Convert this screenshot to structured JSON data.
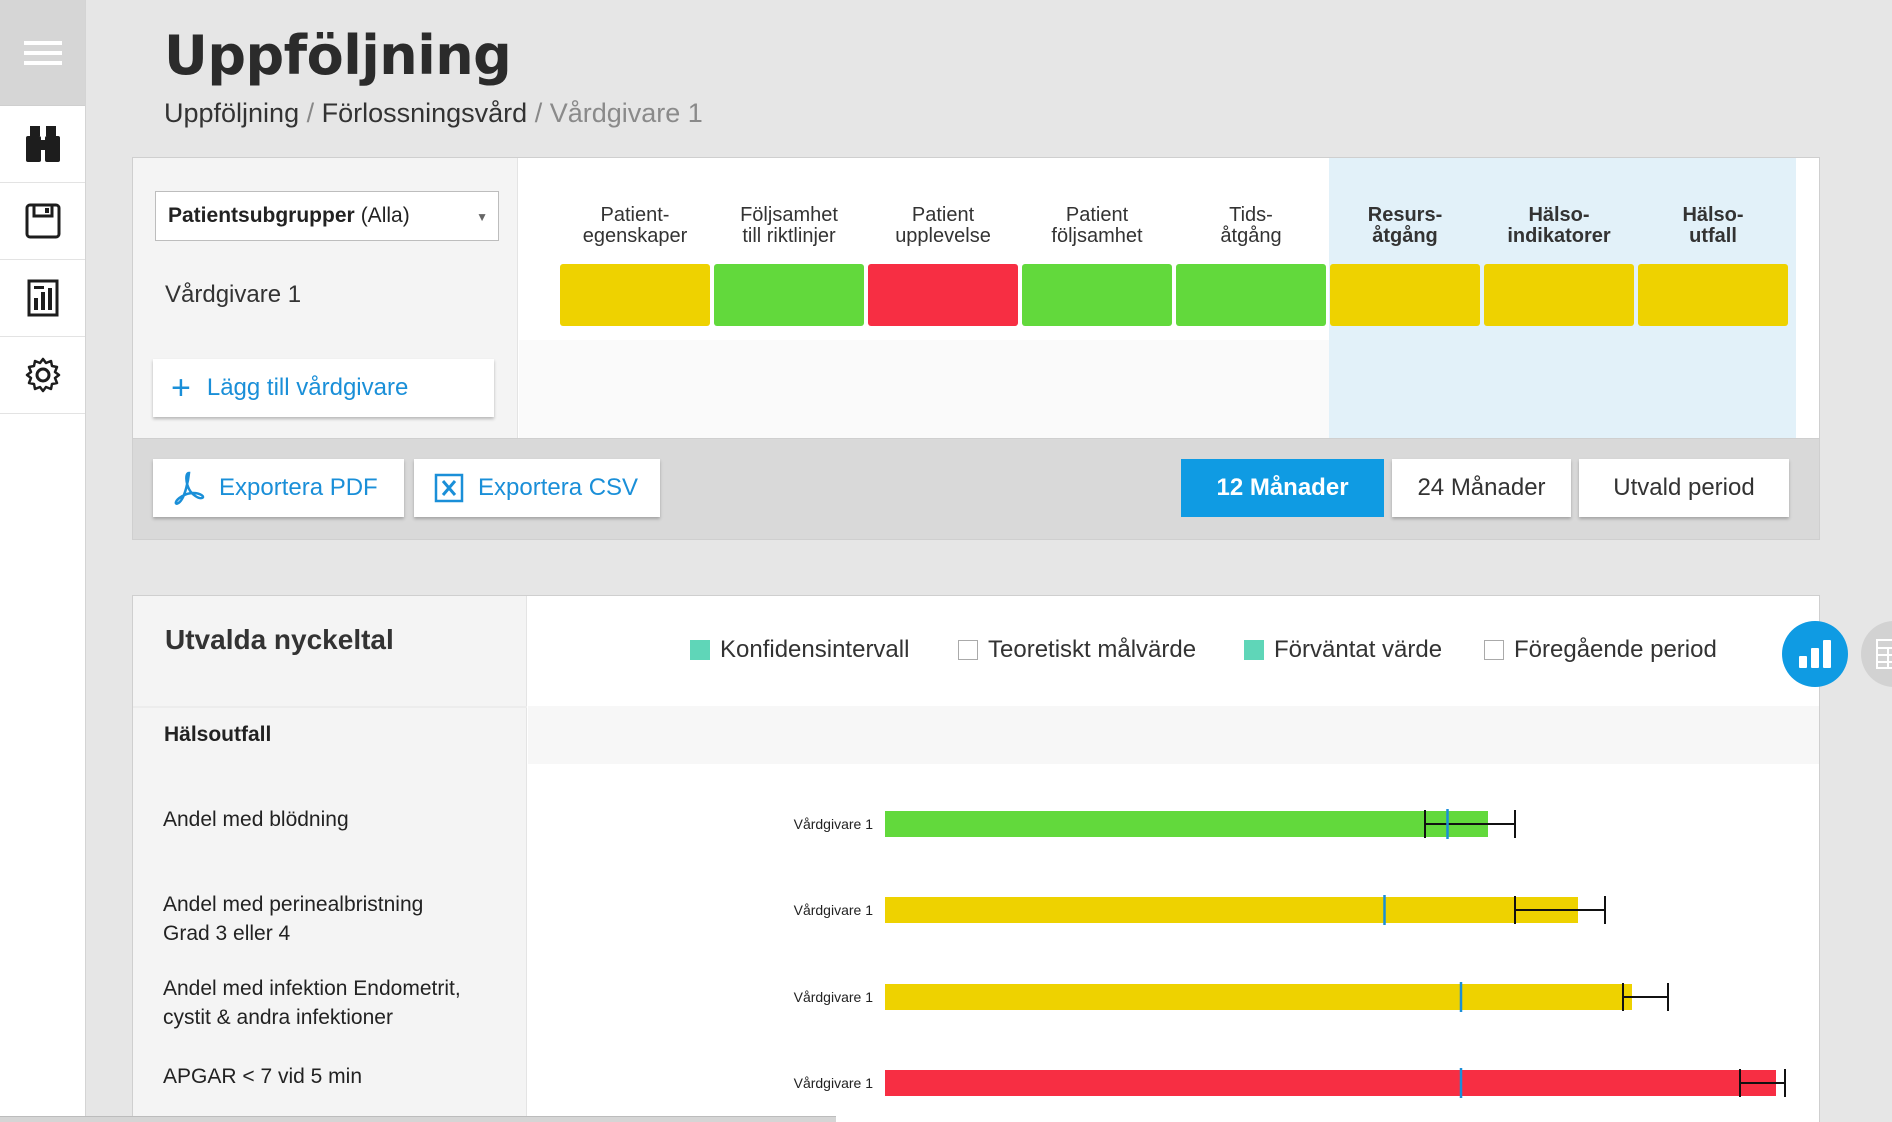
{
  "header": {
    "title": "Uppföljning",
    "breadcrumb": [
      "Uppföljning",
      "Förlossningsvård",
      "Vårdgivare 1"
    ]
  },
  "sidebar": {
    "items": [
      {
        "icon": "menu-icon"
      },
      {
        "icon": "binoculars-icon"
      },
      {
        "icon": "save-icon"
      },
      {
        "icon": "report-icon"
      },
      {
        "icon": "gear-icon"
      }
    ]
  },
  "overview": {
    "subgroup_label": "Patientsubgrupper",
    "subgroup_value": "(Alla)",
    "caregiver": "Vårdgivare 1",
    "add_caregiver": "Lägg till vårdgivare",
    "categories": [
      {
        "line1": "Patient-",
        "line2": "egenskaper",
        "status": "yellow",
        "highlight": false
      },
      {
        "line1": "Följsamhet",
        "line2": "till riktlinjer",
        "status": "green",
        "highlight": false
      },
      {
        "line1": "Patient",
        "line2": "upplevelse",
        "status": "red",
        "highlight": false
      },
      {
        "line1": "Patient",
        "line2": "följsamhet",
        "status": "green",
        "highlight": false
      },
      {
        "line1": "Tids-",
        "line2": "åtgång",
        "status": "green",
        "highlight": false
      },
      {
        "line1": "Resurs-",
        "line2": "åtgång",
        "status": "yellow",
        "highlight": true
      },
      {
        "line1": "Hälso-",
        "line2": "indikatorer",
        "status": "yellow",
        "highlight": true
      },
      {
        "line1": "Hälso-",
        "line2": "utfall",
        "status": "yellow",
        "highlight": true
      }
    ],
    "status_colors": {
      "yellow": "#eed200",
      "green": "#62d93c",
      "red": "#f72e43"
    }
  },
  "controls": {
    "export_pdf": "Exportera PDF",
    "export_csv": "Exportera CSV",
    "periods": [
      "12 Månader",
      "24 Månader",
      "Utvald period"
    ],
    "active_period": "12 Månader"
  },
  "kpis": {
    "title": "Utvalda nyckeltal",
    "legend": [
      {
        "label": "Konfidensintervall",
        "filled": true
      },
      {
        "label": "Teoretiskt målvärde",
        "filled": false
      },
      {
        "label": "Förväntat värde",
        "filled": true
      },
      {
        "label": "Föregående period",
        "filled": false
      }
    ],
    "section": "Hälsoutfall",
    "metrics": [
      {
        "lines": [
          "Andel med blödning"
        ]
      },
      {
        "lines": [
          "Andel med perinealbristning",
          "Grad 3 eller 4"
        ]
      },
      {
        "lines": [
          "Andel med infektion Endometrit,",
          "cystit & andra infektioner"
        ]
      },
      {
        "lines": [
          "APGAR < 7 vid 5 min"
        ]
      }
    ]
  },
  "chart_data": {
    "type": "bar",
    "orientation": "horizontal",
    "categories": [
      "Andel med blödning",
      "Andel med perinealbristning Grad 3 eller 4",
      "Andel med infektion Endometrit, cystit & andra infektioner",
      "APGAR < 7 vid 5 min"
    ],
    "series_label": "Vårdgivare 1",
    "values": [
      0.67,
      0.77,
      0.83,
      0.99
    ],
    "ci_low": [
      0.6,
      0.7,
      0.82,
      0.95
    ],
    "ci_high": [
      0.7,
      0.8,
      0.87,
      1.0
    ],
    "expected": [
      0.625,
      0.555,
      0.64,
      0.64
    ],
    "colors": [
      "#62d93c",
      "#eed200",
      "#eed200",
      "#f72e43"
    ],
    "xlim": [
      0,
      1
    ]
  }
}
